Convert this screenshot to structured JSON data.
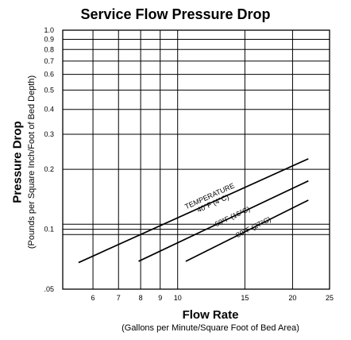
{
  "chart_data": {
    "type": "line",
    "title": "Service Flow Pressure Drop",
    "xlabel": "Flow Rate",
    "xlabel_sub": "(Gallons per Minute/Square Foot of Bed Area)",
    "ylabel": "Pressure Drop",
    "ylabel_sub": "(Pounds per Square Inch/Foot of Bed Depth)",
    "x_scale": "log",
    "y_scale": "log",
    "xlim": [
      5,
      25
    ],
    "ylim": [
      0.05,
      1.0
    ],
    "x_ticks": [
      {
        "value": 6,
        "label": "6"
      },
      {
        "value": 7,
        "label": "7"
      },
      {
        "value": 8,
        "label": "8"
      },
      {
        "value": 9,
        "label": "9"
      },
      {
        "value": 10,
        "label": "10"
      },
      {
        "value": 15,
        "label": "15"
      },
      {
        "value": 20,
        "label": "20"
      },
      {
        "value": 25,
        "label": "25"
      }
    ],
    "y_ticks": [
      {
        "value": 0.05,
        "label": ".05"
      },
      {
        "value": 0.1,
        "label": "0.1"
      },
      {
        "value": 0.2,
        "label": "0.2"
      },
      {
        "value": 0.3,
        "label": "0.3"
      },
      {
        "value": 0.4,
        "label": "0.4"
      },
      {
        "value": 0.5,
        "label": "0.5"
      },
      {
        "value": 0.6,
        "label": "0.6"
      },
      {
        "value": 0.7,
        "label": "0.7"
      },
      {
        "value": 0.8,
        "label": "0.8"
      },
      {
        "value": 0.9,
        "label": "0.9"
      },
      {
        "value": 1.0,
        "label": "1.0"
      }
    ],
    "extra_gridlines_y": [
      0.106,
      0.094
    ],
    "grid": true,
    "series": [
      {
        "name": "TEMPERATURE 40°F (4°C)",
        "label_lines": [
          "TEMPERATURE",
          "40°F (4°C)"
        ],
        "label_at": {
          "x": 12.2,
          "y": 0.143
        },
        "x": [
          5.5,
          22.0
        ],
        "y": [
          0.068,
          0.226
        ]
      },
      {
        "name": "60°F (16°C)",
        "label_lines": [
          "60°F (16°C)"
        ],
        "label_at": {
          "x": 14.0,
          "y": 0.113
        },
        "x": [
          7.9,
          22.0
        ],
        "y": [
          0.069,
          0.175
        ]
      },
      {
        "name": "80°F (27°C)",
        "label_lines": [
          "80°F (27°C)"
        ],
        "label_at": {
          "x": 15.9,
          "y": 0.1
        },
        "x": [
          10.5,
          22.0
        ],
        "y": [
          0.069,
          0.14
        ]
      }
    ]
  }
}
